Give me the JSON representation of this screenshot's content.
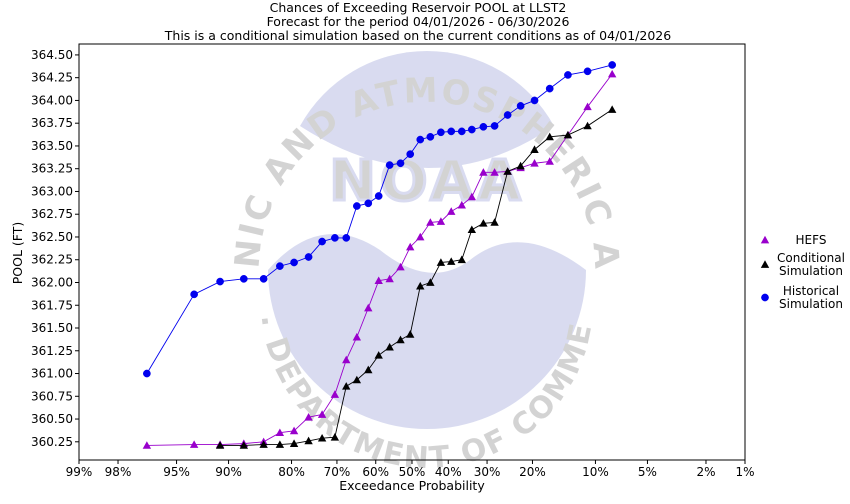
{
  "chart_data": {
    "type": "line",
    "title_lines": [
      "Chances of Exceeding Reservoir POOL at LLST2",
      "Forecast for the period 04/01/2026 - 06/30/2026",
      "This is a conditional simulation based on the current conditions as of 04/01/2026"
    ],
    "xlabel": "Exceedance Probability",
    "ylabel": "POOL (FT)",
    "x_scale": "normal-probability",
    "x_ticks": [
      0.99,
      0.98,
      0.95,
      0.9,
      0.8,
      0.7,
      0.6,
      0.5,
      0.4,
      0.3,
      0.2,
      0.1,
      0.05,
      0.02,
      0.01
    ],
    "x_tick_labels": [
      "99%",
      "98%",
      "95%",
      "90%",
      "80%",
      "70%",
      "60%",
      "50%",
      "40%",
      "30%",
      "20%",
      "10%",
      "5%",
      "2%",
      "1%"
    ],
    "y_ticks": [
      360.25,
      360.5,
      360.75,
      361.0,
      361.25,
      361.5,
      361.75,
      362.0,
      362.25,
      362.5,
      362.75,
      363.0,
      363.25,
      363.5,
      363.75,
      364.0,
      364.25,
      364.5
    ],
    "y_tick_labels": [
      "360.25",
      "360.50",
      "360.75",
      "361.00",
      "361.25",
      "361.50",
      "361.75",
      "362.00",
      "362.25",
      "362.50",
      "362.75",
      "363.00",
      "363.25",
      "363.50",
      "363.75",
      "364.00",
      "364.25",
      "364.50"
    ],
    "ylim": [
      360.05,
      364.62
    ],
    "grid": false,
    "legend_position": "right",
    "series": [
      {
        "name": "HEFS",
        "color": "#9900cc",
        "marker": "triangle",
        "points": [
          [
            0.968,
            360.21
          ],
          [
            0.936,
            360.22
          ],
          [
            0.91,
            360.22
          ],
          [
            0.88,
            360.23
          ],
          [
            0.85,
            360.25
          ],
          [
            0.822,
            360.35
          ],
          [
            0.795,
            360.37
          ],
          [
            0.765,
            360.52
          ],
          [
            0.735,
            360.55
          ],
          [
            0.705,
            360.77
          ],
          [
            0.677,
            361.15
          ],
          [
            0.65,
            361.4
          ],
          [
            0.62,
            361.72
          ],
          [
            0.592,
            362.02
          ],
          [
            0.562,
            362.04
          ],
          [
            0.532,
            362.17
          ],
          [
            0.505,
            362.39
          ],
          [
            0.477,
            362.5
          ],
          [
            0.449,
            362.66
          ],
          [
            0.42,
            362.67
          ],
          [
            0.392,
            362.78
          ],
          [
            0.364,
            362.85
          ],
          [
            0.338,
            362.94
          ],
          [
            0.309,
            363.21
          ],
          [
            0.282,
            363.21
          ],
          [
            0.252,
            363.22
          ],
          [
            0.224,
            363.26
          ],
          [
            0.196,
            363.31
          ],
          [
            0.168,
            363.33
          ],
          [
            0.138,
            363.62
          ],
          [
            0.11,
            363.93
          ],
          [
            0.081,
            364.29
          ]
        ]
      },
      {
        "name": "Conditional Simulation",
        "color": "#000000",
        "marker": "triangle",
        "points": [
          [
            0.91,
            360.21
          ],
          [
            0.88,
            360.21
          ],
          [
            0.85,
            360.22
          ],
          [
            0.822,
            360.22
          ],
          [
            0.795,
            360.23
          ],
          [
            0.765,
            360.26
          ],
          [
            0.735,
            360.29
          ],
          [
            0.705,
            360.3
          ],
          [
            0.677,
            360.86
          ],
          [
            0.65,
            360.93
          ],
          [
            0.62,
            361.04
          ],
          [
            0.592,
            361.2
          ],
          [
            0.562,
            361.29
          ],
          [
            0.532,
            361.37
          ],
          [
            0.505,
            361.43
          ],
          [
            0.477,
            361.96
          ],
          [
            0.449,
            362.0
          ],
          [
            0.42,
            362.22
          ],
          [
            0.392,
            362.23
          ],
          [
            0.364,
            362.25
          ],
          [
            0.338,
            362.58
          ],
          [
            0.309,
            362.65
          ],
          [
            0.282,
            362.66
          ],
          [
            0.252,
            363.22
          ],
          [
            0.224,
            363.28
          ],
          [
            0.196,
            363.46
          ],
          [
            0.168,
            363.6
          ],
          [
            0.138,
            363.62
          ],
          [
            0.11,
            363.72
          ],
          [
            0.081,
            363.9
          ]
        ]
      },
      {
        "name": "Historical Simulation",
        "color": "#0000ee",
        "marker": "circle",
        "points": [
          [
            0.968,
            361.0
          ],
          [
            0.936,
            361.87
          ],
          [
            0.91,
            362.01
          ],
          [
            0.88,
            362.04
          ],
          [
            0.85,
            362.04
          ],
          [
            0.822,
            362.18
          ],
          [
            0.795,
            362.22
          ],
          [
            0.765,
            362.28
          ],
          [
            0.735,
            362.45
          ],
          [
            0.705,
            362.49
          ],
          [
            0.677,
            362.49
          ],
          [
            0.65,
            362.84
          ],
          [
            0.62,
            362.87
          ],
          [
            0.592,
            362.95
          ],
          [
            0.562,
            363.29
          ],
          [
            0.532,
            363.31
          ],
          [
            0.505,
            363.41
          ],
          [
            0.477,
            363.57
          ],
          [
            0.449,
            363.6
          ],
          [
            0.42,
            363.65
          ],
          [
            0.392,
            363.66
          ],
          [
            0.364,
            363.66
          ],
          [
            0.338,
            363.68
          ],
          [
            0.309,
            363.71
          ],
          [
            0.282,
            363.72
          ],
          [
            0.252,
            363.84
          ],
          [
            0.224,
            363.94
          ],
          [
            0.196,
            364.0
          ],
          [
            0.168,
            364.13
          ],
          [
            0.138,
            364.28
          ],
          [
            0.11,
            364.32
          ],
          [
            0.081,
            364.39
          ]
        ]
      }
    ],
    "legend_entries": [
      {
        "label_lines": [
          "HEFS"
        ],
        "color": "#9900cc",
        "marker": "triangle"
      },
      {
        "label_lines": [
          "Conditional",
          "Simulation"
        ],
        "color": "#000000",
        "marker": "triangle"
      },
      {
        "label_lines": [
          "Historical",
          "Simulation"
        ],
        "color": "#0000ee",
        "marker": "circle"
      }
    ],
    "watermark_text": {
      "top_arc": "NATIONAL OCEANIC AND ATMOSPHERIC ADMINISTRATION",
      "center": "NOAA",
      "bottom_arc": "U.S. DEPARTMENT OF COMMERCE"
    }
  }
}
